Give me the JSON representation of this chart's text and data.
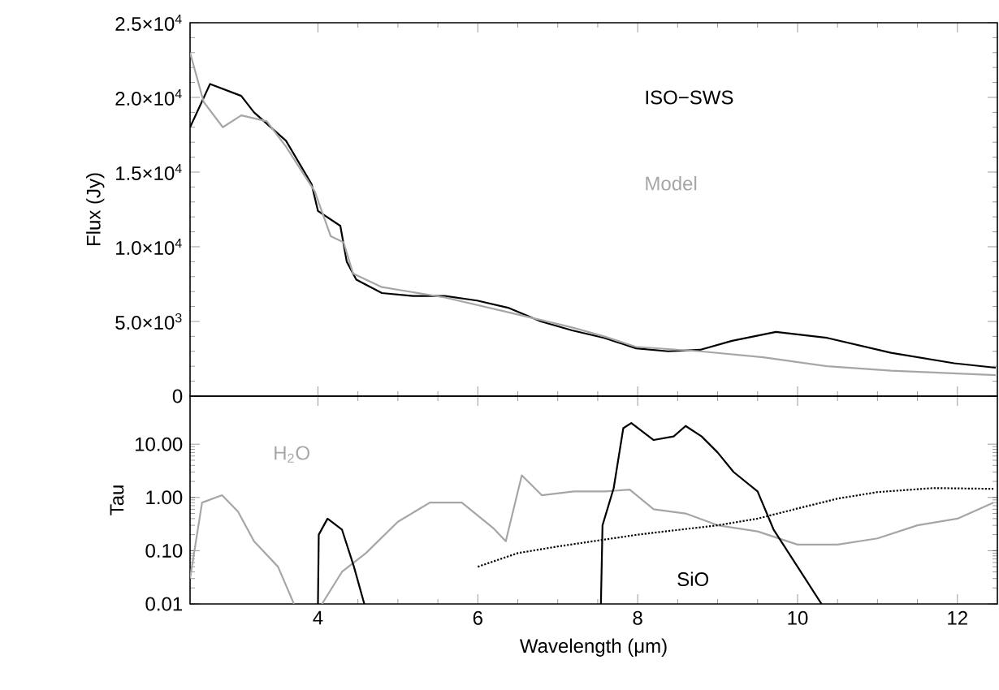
{
  "chart_data": [
    {
      "type": "line",
      "ylabel": "Flux (Jy)",
      "xlim": [
        2.4,
        12.5
      ],
      "ylim": [
        0,
        25000
      ],
      "xticks": [
        4,
        6,
        8,
        10,
        12
      ],
      "yticks": [
        0,
        {
          "value": 5000,
          "label": "5.0×10$^{3}$"
        },
        {
          "value": 10000,
          "label": "1.0×10$^{4}$"
        },
        {
          "value": 15000,
          "label": "1.5×10$^{4}$"
        },
        {
          "value": 20000,
          "label": "2.0×10$^{4}$"
        },
        {
          "value": 25000,
          "label": "2.5×10$^{4}$"
        }
      ],
      "tick_labels": "y",
      "legend": false,
      "grid": false,
      "series": [
        {
          "name": "ISO−SWS",
          "color": "#000000",
          "line_style": "solid",
          "x": [
            2.4,
            2.65,
            3.04,
            3.2,
            3.6,
            3.92,
            4.0,
            4.28,
            4.36,
            4.48,
            4.8,
            5.19,
            5.59,
            5.99,
            6.39,
            6.79,
            7.18,
            7.58,
            7.98,
            8.38,
            8.78,
            9.18,
            9.73,
            10.37,
            11.17,
            11.96,
            12.48
          ],
          "values": [
            18000,
            20900,
            20100,
            19000,
            17100,
            14200,
            12400,
            11400,
            9000,
            7800,
            6900,
            6700,
            6700,
            6400,
            5900,
            5000,
            4400,
            3900,
            3200,
            3000,
            3100,
            3700,
            4300,
            3900,
            2900,
            2200,
            1900
          ]
        },
        {
          "name": "Model",
          "color": "#a6a6a6",
          "line_style": "solid",
          "x": [
            2.4,
            2.57,
            2.81,
            3.04,
            3.36,
            3.6,
            3.96,
            4.16,
            4.32,
            4.44,
            4.8,
            5.59,
            6.39,
            7.18,
            7.58,
            7.98,
            8.78,
            9.57,
            10.37,
            11.17,
            12.48
          ],
          "values": [
            23000,
            19700,
            18000,
            18800,
            18400,
            16700,
            13700,
            10700,
            10300,
            8200,
            7300,
            6600,
            5600,
            4600,
            4000,
            3300,
            3000,
            2600,
            2000,
            1700,
            1400
          ]
        }
      ]
    },
    {
      "type": "line",
      "xlabel": "Wavelength (μm)",
      "ylabel": "Tau",
      "log": "y",
      "xlim": [
        2.4,
        12.5
      ],
      "ylim": [
        0.01,
        80
      ],
      "xticks": [
        4,
        6,
        8,
        10,
        12
      ],
      "yticks": [
        0.01,
        {
          "value": 0.1,
          "label": "0.10"
        },
        {
          "value": 1,
          "label": "1.00"
        },
        {
          "value": 10,
          "label": "10.00"
        }
      ],
      "legend": false,
      "grid": false,
      "series": [
        {
          "name": "H$_{2}$O",
          "color": "#a6a6a6",
          "line_style": "solid",
          "x": [
            2.4,
            2.55,
            2.8,
            3.0,
            3.2,
            3.5,
            3.7,
            3.9,
            4.05,
            4.3,
            4.6,
            5.0,
            5.4,
            5.8,
            6.2,
            6.35,
            6.55,
            6.8,
            7.2,
            7.6,
            7.9,
            8.2,
            8.6,
            9.0,
            9.5,
            10.0,
            10.5,
            11.0,
            11.5,
            12.0,
            12.45
          ],
          "values": [
            0.03,
            0.8,
            1.1,
            0.54,
            0.15,
            0.05,
            0.01,
            null,
            0.01,
            0.04,
            0.09,
            0.35,
            0.8,
            0.8,
            0.26,
            0.15,
            2.6,
            1.1,
            1.3,
            1.3,
            1.4,
            0.6,
            0.5,
            0.3,
            0.23,
            0.13,
            0.13,
            0.17,
            0.3,
            0.4,
            0.8
          ]
        },
        {
          "name": "SiO",
          "color": "#000000",
          "line_style": "solid",
          "x": [
            4.0,
            4.01,
            4.12,
            4.3,
            4.45,
            4.58,
            4.7,
            7.54,
            7.56,
            7.7,
            7.82,
            7.92,
            8.2,
            8.45,
            8.6,
            8.8,
            9.0,
            9.2,
            9.5,
            9.7,
            10.0,
            10.3
          ],
          "values": [
            0.01,
            0.2,
            0.4,
            0.25,
            0.05,
            0.01,
            null,
            0.01,
            0.3,
            1.5,
            20,
            25,
            12,
            14,
            22,
            14,
            7,
            3,
            1.3,
            0.25,
            0.05,
            0.01
          ]
        },
        {
          "color": "#000000",
          "line_style": "dotted",
          "x": [
            6.0,
            6.5,
            7.0,
            8.0,
            9.0,
            9.5,
            10.0,
            10.5,
            11.0,
            11.7,
            12.45
          ],
          "values": [
            0.05,
            0.09,
            0.12,
            0.2,
            0.3,
            0.4,
            0.62,
            0.95,
            1.26,
            1.5,
            1.45
          ]
        }
      ]
    }
  ]
}
